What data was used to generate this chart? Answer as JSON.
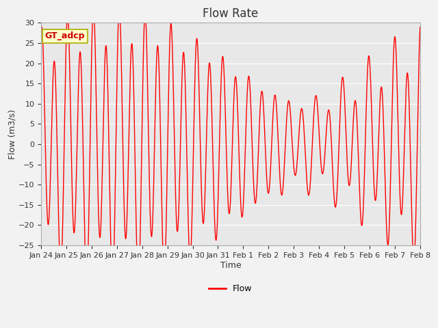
{
  "title": "Flow Rate",
  "xlabel": "Time",
  "ylabel": "Flow (m3/s)",
  "ylim": [
    -25,
    30
  ],
  "yticks": [
    -25,
    -20,
    -15,
    -10,
    -5,
    0,
    5,
    10,
    15,
    20,
    25,
    30
  ],
  "line_color": "#FF0000",
  "line_width": 1.0,
  "fig_bg_color": "#F2F2F2",
  "plot_bg_color": "#E8E8E8",
  "grid_color": "#FFFFFF",
  "annotation_text": "GT_adcp",
  "annotation_bg": "#FFFFCC",
  "annotation_border": "#AAAA00",
  "legend_label": "Flow",
  "tick_labels": [
    "Jan 24",
    "Jan 25",
    "Jan 26",
    "Jan 27",
    "Jan 28",
    "Jan 29",
    "Jan 30",
    "Jan 31",
    "Feb 1",
    "Feb 2",
    "Feb 3",
    "Feb 4",
    "Feb 5",
    "Feb 6",
    "Feb 7",
    "Feb 8"
  ],
  "title_fontsize": 12,
  "axis_label_fontsize": 9,
  "tick_fontsize": 8
}
